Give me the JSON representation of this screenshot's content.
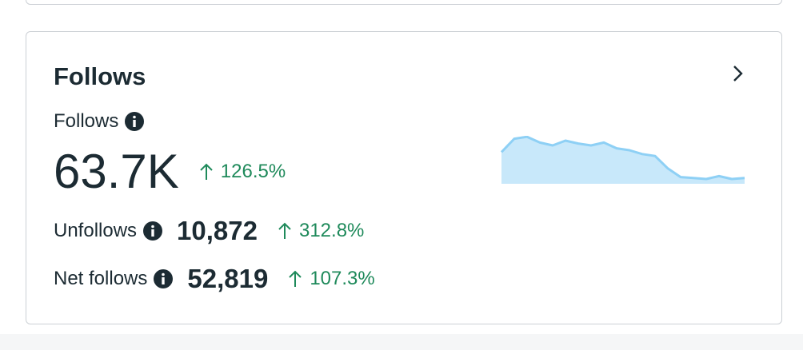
{
  "header": {
    "title": "Follows"
  },
  "primary": {
    "label": "Follows",
    "value": "63.7K",
    "change": "126.5%"
  },
  "rows": [
    {
      "label": "Unfollows",
      "value": "10,872",
      "change": "312.8%"
    },
    {
      "label": "Net follows",
      "value": "52,819",
      "change": "107.3%"
    }
  ],
  "sparkline": {
    "type": "area",
    "values": [
      33,
      47,
      49,
      43,
      40,
      45,
      42,
      40,
      43,
      37,
      35,
      31,
      29,
      16,
      7,
      6,
      5,
      8,
      5,
      6
    ],
    "ylim": [
      0,
      50
    ],
    "line_color": "#8ed0f5",
    "fill_color": "#c8e8fa"
  }
}
